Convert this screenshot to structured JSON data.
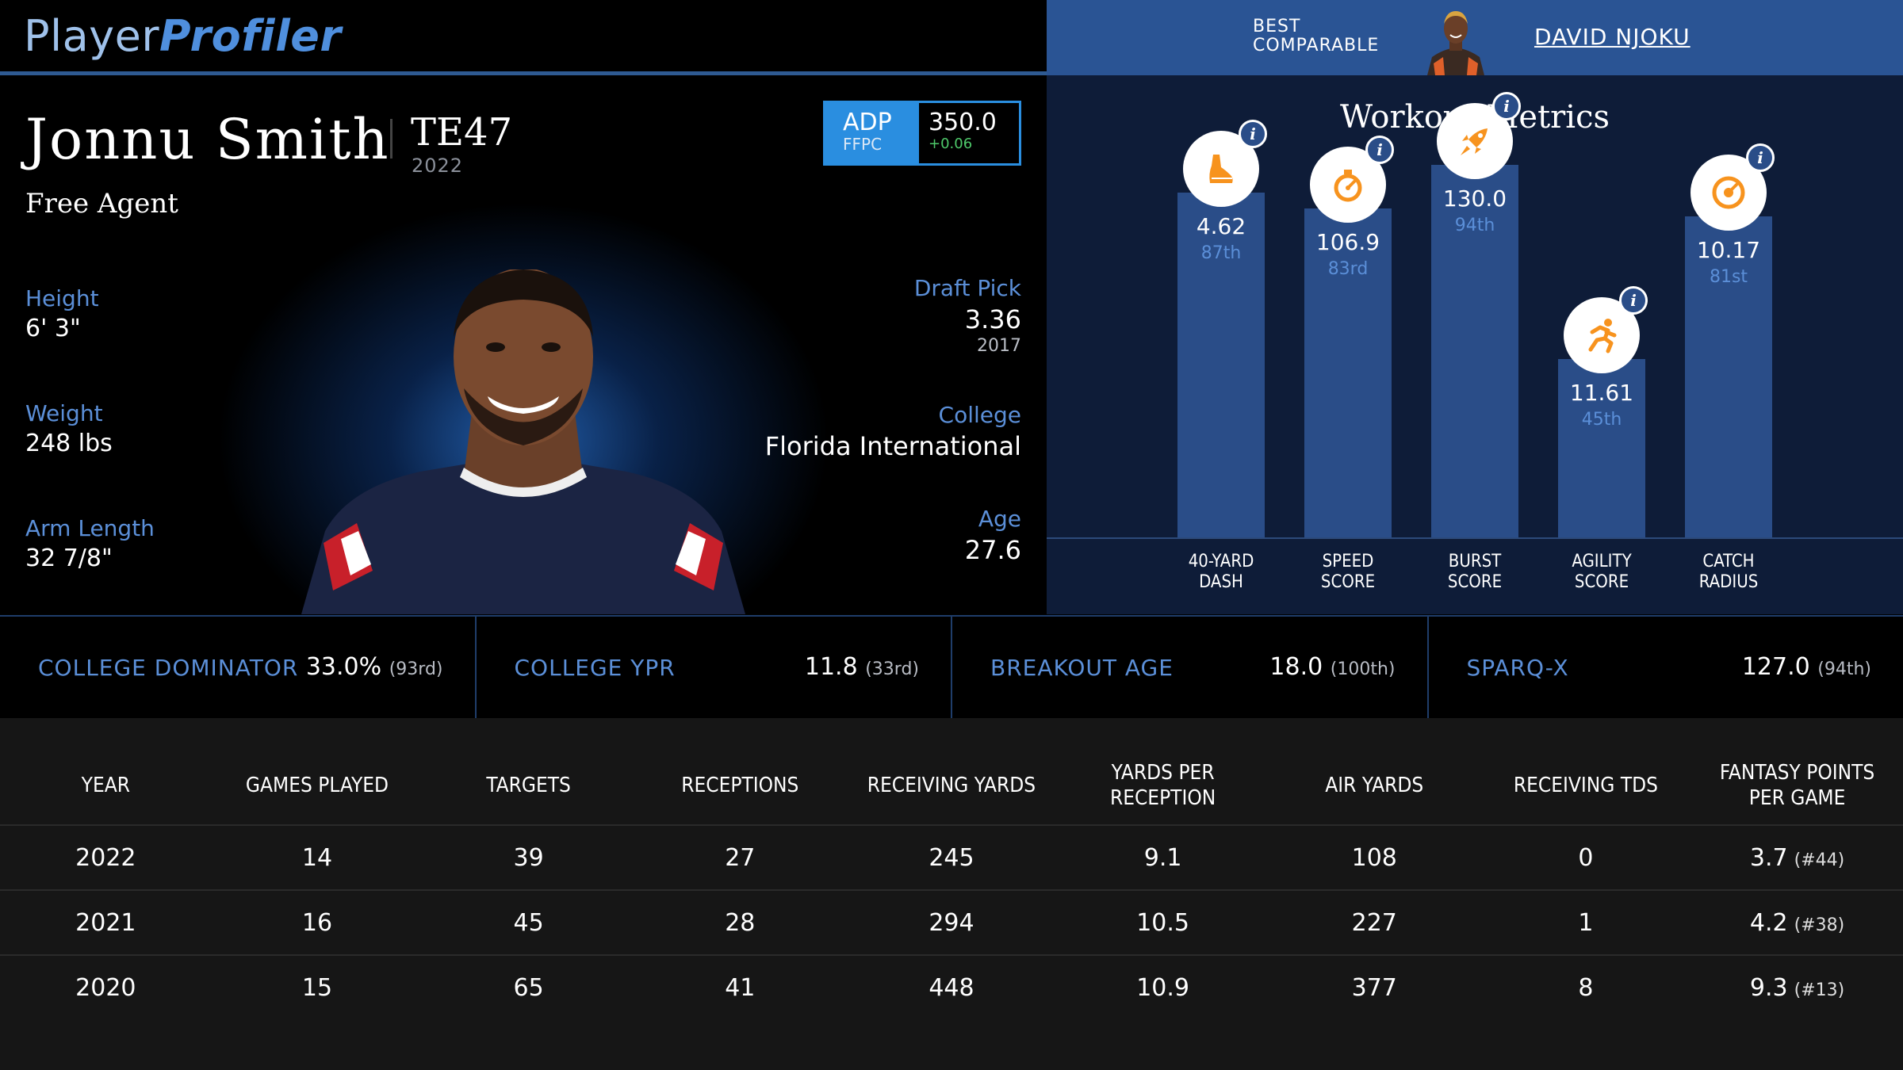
{
  "brand": {
    "part1": "Player",
    "part2": "Profiler"
  },
  "player": {
    "name": "Jonnu Smith",
    "position": "TE47",
    "position_year": "2022",
    "team": "Free Agent"
  },
  "adp": {
    "label": "ADP",
    "source": "FFPC",
    "value": "350.0",
    "delta": "+0.06"
  },
  "bio": {
    "height_label": "Height",
    "height": "6' 3\"",
    "weight_label": "Weight",
    "weight": "248 lbs",
    "arm_label": "Arm Length",
    "arm": "32 7/8\"",
    "draft_label": "Draft Pick",
    "draft": "3.36",
    "draft_year": "2017",
    "college_label": "College",
    "college": "Florida International",
    "age_label": "Age",
    "age": "27.6"
  },
  "comparable": {
    "label_line1": "BEST",
    "label_line2": "COMPARABLE",
    "name": "DAVID NJOKU"
  },
  "workout": {
    "title": "Workout Metrics",
    "info_glyph": "i",
    "items": [
      {
        "value": "4.62",
        "rank": "87th",
        "percentile": 87,
        "label1": "40-YARD",
        "label2": "DASH",
        "icon": "shoe-icon"
      },
      {
        "value": "106.9",
        "rank": "83rd",
        "percentile": 83,
        "label1": "SPEED",
        "label2": "SCORE",
        "icon": "stopwatch-icon"
      },
      {
        "value": "130.0",
        "rank": "94th",
        "percentile": 94,
        "label1": "BURST",
        "label2": "SCORE",
        "icon": "rocket-icon"
      },
      {
        "value": "11.61",
        "rank": "45th",
        "percentile": 45,
        "label1": "AGILITY",
        "label2": "SCORE",
        "icon": "runner-icon"
      },
      {
        "value": "10.17",
        "rank": "81st",
        "percentile": 81,
        "label1": "CATCH",
        "label2": "RADIUS",
        "icon": "target-icon"
      }
    ]
  },
  "metrics": [
    {
      "label": "COLLEGE DOMINATOR",
      "value": "33.0%",
      "rank": "(93rd)"
    },
    {
      "label": "COLLEGE YPR",
      "value": "11.8",
      "rank": "(33rd)"
    },
    {
      "label": "BREAKOUT AGE",
      "value": "18.0",
      "rank": "(100th)"
    },
    {
      "label": "SPARQ-X",
      "value": "127.0",
      "rank": "(94th)"
    }
  ],
  "table": {
    "headers": [
      "YEAR",
      "GAMES PLAYED",
      "TARGETS",
      "RECEPTIONS",
      "RECEIVING YARDS",
      "YARDS PER RECEPTION",
      "AIR YARDS",
      "RECEIVING TDS",
      "FANTASY POINTS PER GAME"
    ],
    "rows": [
      {
        "year": "2022",
        "games": "14",
        "targets": "39",
        "receptions": "27",
        "yards": "245",
        "ypr": "9.1",
        "air": "108",
        "tds": "0",
        "fppg": "3.7",
        "fppg_rank": "(#44)"
      },
      {
        "year": "2021",
        "games": "16",
        "targets": "45",
        "receptions": "28",
        "yards": "294",
        "ypr": "10.5",
        "air": "227",
        "tds": "1",
        "fppg": "4.2",
        "fppg_rank": "(#38)"
      },
      {
        "year": "2020",
        "games": "15",
        "targets": "65",
        "receptions": "41",
        "yards": "448",
        "ypr": "10.9",
        "air": "377",
        "tds": "8",
        "fppg": "9.3",
        "fppg_rank": "(#13)"
      }
    ]
  },
  "colors": {
    "accent": "#2a8ee0",
    "label_blue": "#5b8fd8",
    "workout_bg": "#0e1c38",
    "bar": "#2a4d88",
    "icon_orange": "#f7931e"
  }
}
